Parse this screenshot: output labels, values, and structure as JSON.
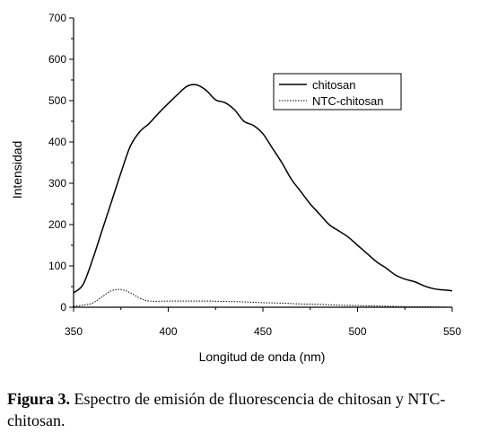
{
  "chart_data": {
    "type": "line",
    "title": "",
    "xlabel": "Longitud de onda (nm)",
    "ylabel": "Intensidad",
    "xlim": [
      350,
      550
    ],
    "ylim": [
      0,
      700
    ],
    "x_ticks": [
      350,
      400,
      450,
      500,
      550
    ],
    "y_ticks": [
      0,
      100,
      200,
      300,
      400,
      500,
      600,
      700
    ],
    "grid": false,
    "legend_position": "top-right",
    "series": [
      {
        "name": "chitosan",
        "style": "solid",
        "color": "#000000",
        "x": [
          350,
          355,
          360,
          365,
          370,
          375,
          380,
          385,
          390,
          395,
          400,
          405,
          410,
          415,
          420,
          425,
          430,
          435,
          440,
          445,
          450,
          455,
          460,
          465,
          470,
          475,
          480,
          485,
          490,
          495,
          500,
          505,
          510,
          515,
          520,
          525,
          530,
          535,
          540,
          545,
          550
        ],
        "values": [
          35,
          55,
          115,
          185,
          255,
          325,
          390,
          425,
          445,
          470,
          493,
          515,
          535,
          538,
          525,
          502,
          495,
          478,
          450,
          440,
          420,
          385,
          350,
          310,
          280,
          250,
          225,
          200,
          185,
          170,
          150,
          130,
          110,
          95,
          78,
          68,
          62,
          52,
          45,
          42,
          40
        ]
      },
      {
        "name": "NTC-chitosan",
        "style": "dotted",
        "color": "#000000",
        "x": [
          350,
          355,
          360,
          365,
          370,
          375,
          380,
          385,
          390,
          400,
          410,
          420,
          430,
          440,
          450,
          460,
          470,
          480,
          490,
          500,
          510,
          520,
          530,
          540,
          550
        ],
        "values": [
          2,
          5,
          10,
          25,
          40,
          43,
          35,
          22,
          15,
          15,
          15,
          15,
          14,
          13,
          11,
          10,
          8,
          7,
          5,
          4,
          3,
          2,
          1,
          1,
          0
        ]
      }
    ]
  },
  "caption": {
    "label": "Figura 3.",
    "text": " Espectro de emisión de fluorescencia de chitosan y NTC-chitosan."
  }
}
